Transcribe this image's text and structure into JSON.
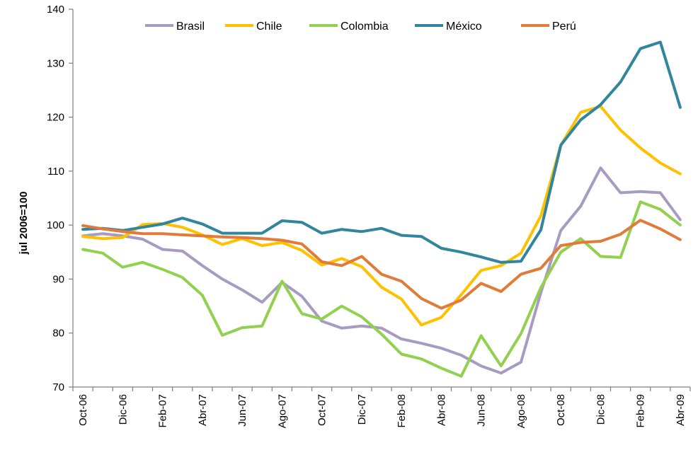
{
  "chart_data": {
    "type": "line",
    "ylabel": "jul 2006=100",
    "xlabel": "",
    "title": "",
    "ylim": [
      70,
      140
    ],
    "yticks": [
      70,
      80,
      90,
      100,
      110,
      120,
      130,
      140
    ],
    "grid": false,
    "legend_position": "top",
    "x": [
      "Oct-06",
      "Nov-06",
      "Dic-06",
      "Ene-07",
      "Feb-07",
      "Mar-07",
      "Abr-07",
      "May-07",
      "Jun-07",
      "Jul-07",
      "Ago-07",
      "Sep-07",
      "Oct-07",
      "Nov-07",
      "Dic-07",
      "Ene-08",
      "Feb-08",
      "Mar-08",
      "Abr-08",
      "May-08",
      "Jun-08",
      "Jul-08",
      "Ago-08",
      "Sep-08",
      "Oct-08",
      "Nov-08",
      "Dic-08",
      "Ene-09",
      "Feb-09",
      "Mar-09",
      "Abr-09"
    ],
    "x_tick_labels": [
      "Oct-06",
      "Dic-06",
      "Feb-07",
      "Abr-07",
      "Jun-07",
      "Ago-07",
      "Oct-07",
      "Dic-07",
      "Feb-08",
      "Abr-08",
      "Jun-08",
      "Ago-08",
      "Oct-08",
      "Dic-08",
      "Feb-09",
      "Abr-09"
    ],
    "series": [
      {
        "name": "Brasil",
        "color": "#a89bc2",
        "values": [
          98.0,
          98.4,
          98.0,
          97.4,
          95.5,
          95.2,
          92.5,
          90.0,
          88.0,
          85.7,
          89.4,
          86.8,
          82.2,
          80.9,
          81.3,
          80.9,
          78.9,
          78.1,
          77.2,
          75.9,
          73.9,
          72.6,
          74.6,
          87.5,
          99.0,
          103.5,
          110.6,
          106.0,
          106.2,
          106.0,
          101.0
        ]
      },
      {
        "name": "Chile",
        "color": "#ffc000",
        "values": [
          97.9,
          97.5,
          97.7,
          100.1,
          100.3,
          99.6,
          98.2,
          96.4,
          97.5,
          96.2,
          96.8,
          95.3,
          92.6,
          93.8,
          92.3,
          88.5,
          86.3,
          81.5,
          82.9,
          87.1,
          91.6,
          92.5,
          94.8,
          101.7,
          114.8,
          120.9,
          122.0,
          117.6,
          114.3,
          111.5,
          109.5
        ]
      },
      {
        "name": "Colombia",
        "color": "#92d050",
        "values": [
          95.5,
          94.8,
          92.2,
          93.1,
          91.8,
          90.3,
          87.0,
          79.6,
          81.0,
          81.3,
          89.6,
          83.6,
          82.6,
          85.0,
          83.0,
          79.8,
          76.1,
          75.2,
          73.5,
          72.0,
          79.5,
          73.9,
          79.9,
          88.4,
          95.0,
          97.5,
          94.2,
          94.0,
          104.3,
          102.9,
          100.0
        ]
      },
      {
        "name": "México",
        "color": "#31859c",
        "values": [
          99.2,
          99.4,
          99.0,
          99.6,
          100.2,
          101.3,
          100.2,
          98.5,
          98.5,
          98.5,
          100.8,
          100.5,
          98.5,
          99.2,
          98.8,
          99.4,
          98.1,
          97.9,
          95.7,
          95.0,
          94.1,
          93.1,
          93.3,
          99.1,
          114.8,
          119.5,
          122.3,
          126.5,
          132.7,
          133.9,
          121.8
        ]
      },
      {
        "name": "Perú",
        "color": "#e07b39",
        "values": [
          99.9,
          99.3,
          98.8,
          98.4,
          98.4,
          98.2,
          98.0,
          97.8,
          97.7,
          97.5,
          97.2,
          96.5,
          93.2,
          92.5,
          94.2,
          90.9,
          89.6,
          86.4,
          84.6,
          86.1,
          89.2,
          87.7,
          90.9,
          92.0,
          96.2,
          96.8,
          97.0,
          98.3,
          100.9,
          99.3,
          97.3
        ]
      }
    ]
  }
}
